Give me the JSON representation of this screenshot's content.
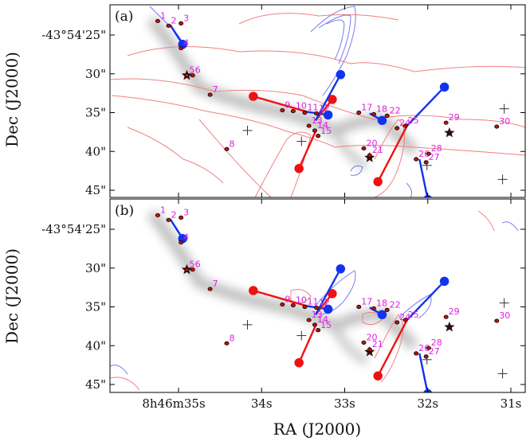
{
  "chart_data": {
    "type": "scatter",
    "xlabel": "RA (J2000)",
    "ylabel": "Dec (J2000)",
    "xticks": [
      "8h46m35s",
      "34s",
      "33s",
      "32s",
      "31s"
    ],
    "yticks_first": "-43°54'25\"",
    "yticks": [
      "30\"",
      "35\"",
      "40\"",
      "45\""
    ],
    "panels": [
      {
        "label": "(a)"
      },
      {
        "label": "(b)"
      }
    ],
    "sources": [
      {
        "id": "1",
        "ra_s": 35.25,
        "dec_off": 23.2
      },
      {
        "id": "2",
        "ra_s": 35.12,
        "dec_off": 23.8
      },
      {
        "id": "3",
        "ra_s": 34.97,
        "dec_off": 23.5
      },
      {
        "id": "4",
        "ra_s": 34.97,
        "dec_off": 26.7
      },
      {
        "id": "5",
        "ra_s": 34.9,
        "dec_off": 30.2
      },
      {
        "id": "6",
        "ra_s": 34.83,
        "dec_off": 30.2
      },
      {
        "id": "7",
        "ra_s": 34.62,
        "dec_off": 32.7
      },
      {
        "id": "8",
        "ra_s": 34.42,
        "dec_off": 39.7
      },
      {
        "id": "9",
        "ra_s": 33.75,
        "dec_off": 34.7
      },
      {
        "id": "10",
        "ra_s": 33.62,
        "dec_off": 34.8
      },
      {
        "id": "11",
        "ra_s": 33.48,
        "dec_off": 35.0
      },
      {
        "id": "12",
        "ra_s": 33.34,
        "dec_off": 35.1
      },
      {
        "id": "13",
        "ra_s": 33.43,
        "dec_off": 36.7
      },
      {
        "id": "14",
        "ra_s": 33.36,
        "dec_off": 37.3
      },
      {
        "id": "15",
        "ra_s": 33.32,
        "dec_off": 38.0
      },
      {
        "id": "17",
        "ra_s": 32.83,
        "dec_off": 35.0
      },
      {
        "id": "18",
        "ra_s": 32.65,
        "dec_off": 35.2
      },
      {
        "id": "22",
        "ra_s": 32.49,
        "dec_off": 35.4
      },
      {
        "id": "24",
        "ra_s": 32.37,
        "dec_off": 37.0
      },
      {
        "id": "25",
        "ra_s": 32.27,
        "dec_off": 36.7
      },
      {
        "id": "20",
        "ra_s": 32.77,
        "dec_off": 39.6
      },
      {
        "id": "21",
        "ra_s": 32.7,
        "dec_off": 40.5
      },
      {
        "id": "26",
        "ra_s": 32.14,
        "dec_off": 41.0
      },
      {
        "id": "27",
        "ra_s": 32.02,
        "dec_off": 41.4
      },
      {
        "id": "28",
        "ra_s": 31.99,
        "dec_off": 40.3
      },
      {
        "id": "29",
        "ra_s": 31.78,
        "dec_off": 36.3
      },
      {
        "id": "30",
        "ra_s": 31.17,
        "dec_off": 36.8
      }
    ],
    "stars": [
      {
        "ra_s": 34.9,
        "dec_off": 30.2
      },
      {
        "ra_s": 32.7,
        "dec_off": 40.8
      },
      {
        "ra_s": 31.74,
        "dec_off": 37.6
      }
    ],
    "crosses": [
      {
        "ra_s": 34.17,
        "dec_off": 37.3
      },
      {
        "ra_s": 33.52,
        "dec_off": 38.7
      },
      {
        "ra_s": 32.01,
        "dec_off": 41.8
      },
      {
        "ra_s": 31.08,
        "dec_off": 34.5
      },
      {
        "ra_s": 31.1,
        "dec_off": 43.6
      }
    ],
    "outflows_a": [
      {
        "lobe": "red",
        "x0": 33.45,
        "y0": 34.9,
        "x1": 34.1,
        "y1": 32.9
      },
      {
        "lobe": "blue",
        "x0": 33.45,
        "y0": 34.9,
        "x1": 33.2,
        "y1": 35.3
      },
      {
        "lobe": "red",
        "x0": 33.35,
        "y0": 36.0,
        "x1": 33.15,
        "y1": 33.3
      },
      {
        "lobe": "blue",
        "x0": 33.35,
        "y0": 36.0,
        "x1": 33.05,
        "y1": 30.1
      },
      {
        "lobe": "red",
        "x0": 33.35,
        "y0": 37.4,
        "x1": 33.55,
        "y1": 42.2
      },
      {
        "lobe": "red",
        "x0": 32.25,
        "y0": 36.7,
        "x1": 32.6,
        "y1": 43.9
      },
      {
        "lobe": "blue",
        "x0": 32.25,
        "y0": 36.7,
        "x1": 31.8,
        "y1": 31.7
      },
      {
        "lobe": "blue",
        "x0": 32.1,
        "y0": 41.0,
        "x1": 32.0,
        "y1": 46.2
      },
      {
        "lobe": "blue",
        "x0": 35.1,
        "y0": 23.7,
        "x1": 34.95,
        "y1": 26.2
      },
      {
        "lobe": "blue",
        "x0": 32.7,
        "y0": 35.1,
        "x1": 32.55,
        "y1": 36.0
      }
    ],
    "outflows_b": [
      {
        "lobe": "red",
        "x0": 33.45,
        "y0": 34.9,
        "x1": 34.1,
        "y1": 32.9
      },
      {
        "lobe": "blue",
        "x0": 33.45,
        "y0": 34.9,
        "x1": 33.2,
        "y1": 35.3
      },
      {
        "lobe": "red",
        "x0": 33.35,
        "y0": 36.0,
        "x1": 33.15,
        "y1": 33.3
      },
      {
        "lobe": "blue",
        "x0": 33.35,
        "y0": 36.0,
        "x1": 33.05,
        "y1": 30.1
      },
      {
        "lobe": "red",
        "x0": 33.35,
        "y0": 37.4,
        "x1": 33.55,
        "y1": 42.2
      },
      {
        "lobe": "red",
        "x0": 32.25,
        "y0": 36.7,
        "x1": 32.6,
        "y1": 43.9
      },
      {
        "lobe": "blue",
        "x0": 32.25,
        "y0": 36.7,
        "x1": 31.8,
        "y1": 31.7
      },
      {
        "lobe": "blue",
        "x0": 32.1,
        "y0": 41.0,
        "x1": 32.0,
        "y1": 46.2
      },
      {
        "lobe": "blue",
        "x0": 35.1,
        "y0": 23.7,
        "x1": 34.95,
        "y1": 26.2
      },
      {
        "lobe": "blue",
        "x0": 32.7,
        "y0": 35.1,
        "x1": 32.55,
        "y1": 36.0
      }
    ],
    "colors": {
      "red_lobe": "#ee1111",
      "blue_lobe": "#1133ee",
      "red_contour": "#f08080",
      "blue_contour": "#7a7aee",
      "source_label": "#e020e0",
      "dust": "#555555"
    }
  }
}
